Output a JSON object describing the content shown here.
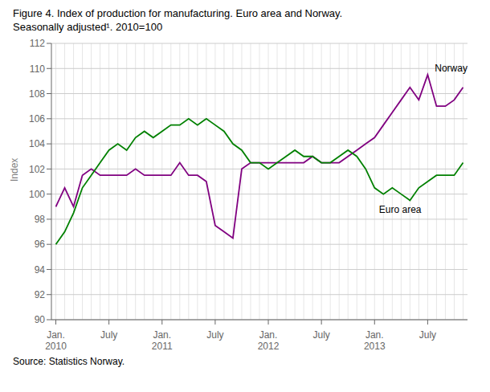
{
  "chart_data": {
    "type": "line",
    "title": "Figure 4. Index of production for manufacturing. Euro area and Norway.",
    "subtitle": "Seasonally adjusted¹. 2010=100",
    "ylabel": "Index",
    "source": "Source: Statistics Norway.",
    "categories": [
      "Jan.\n2010",
      null,
      null,
      null,
      null,
      null,
      "July",
      null,
      null,
      null,
      null,
      null,
      "Jan.\n2011",
      null,
      null,
      null,
      null,
      null,
      "July",
      null,
      null,
      null,
      null,
      null,
      "Jan.\n2012",
      null,
      null,
      null,
      null,
      null,
      "July",
      null,
      null,
      null,
      null,
      null,
      "Jan.\n2013",
      null,
      null,
      null,
      null,
      null,
      "July",
      null,
      null,
      null,
      null
    ],
    "series": [
      {
        "name": "Norway",
        "color": "#800080",
        "values": [
          99.0,
          100.5,
          99.0,
          101.5,
          102.0,
          101.5,
          101.5,
          101.5,
          101.5,
          102.0,
          101.5,
          101.5,
          101.5,
          101.5,
          102.5,
          101.5,
          101.5,
          101.0,
          97.5,
          97.0,
          96.5,
          102.0,
          102.5,
          102.5,
          102.5,
          102.5,
          102.5,
          102.5,
          102.5,
          103.0,
          102.5,
          102.5,
          102.5,
          103.0,
          103.5,
          104.0,
          104.5,
          105.5,
          106.5,
          107.5,
          108.5,
          107.5,
          109.5,
          107.0,
          107.0,
          107.5,
          108.5
        ]
      },
      {
        "name": "Euro area",
        "color": "#008000",
        "values": [
          96.0,
          97.0,
          98.5,
          100.5,
          101.5,
          102.5,
          103.5,
          104.0,
          103.5,
          104.5,
          105.0,
          104.5,
          105.0,
          105.5,
          105.5,
          106.0,
          105.5,
          106.0,
          105.5,
          105.0,
          104.0,
          103.5,
          102.5,
          102.5,
          102.0,
          102.5,
          103.0,
          103.5,
          103.0,
          103.0,
          102.5,
          102.5,
          103.0,
          103.5,
          103.0,
          102.0,
          100.5,
          100.0,
          100.5,
          100.0,
          99.5,
          100.5,
          101.0,
          101.5,
          101.5,
          101.5,
          102.5
        ]
      }
    ],
    "annotations": [
      {
        "text": "Norway",
        "x": 42.8,
        "y": 109.6
      },
      {
        "text": "Euro area",
        "x": 36.5,
        "y": 99.2
      }
    ],
    "ylim": [
      90,
      112
    ],
    "yticks": [
      90,
      92,
      94,
      96,
      98,
      100,
      102,
      104,
      106,
      108,
      110,
      112
    ],
    "grid": true
  }
}
